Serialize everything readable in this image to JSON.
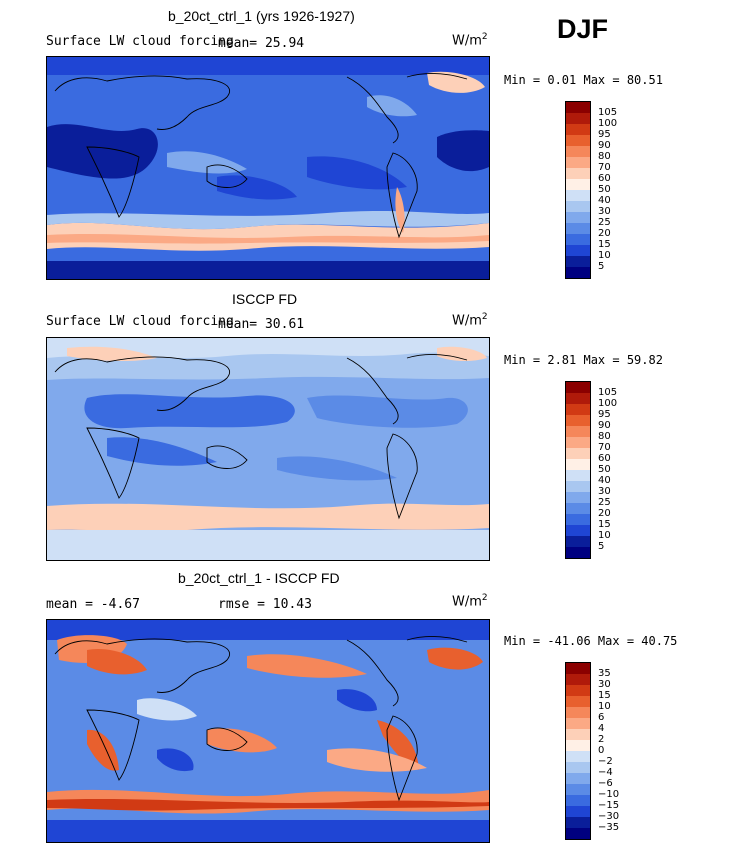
{
  "season": "DJF",
  "panels": [
    {
      "title": "b_20ct_ctrl_1 (yrs 1926-1927)",
      "field": "Surface LW cloud forcing",
      "stats": "mean=   25.94",
      "units": "W/m",
      "units_exp": "2",
      "minmax": "Min =    0.01  Max =   80.51",
      "levels": [
        "105",
        "100",
        "95",
        "90",
        "80",
        "70",
        "60",
        "50",
        "40",
        "30",
        "25",
        "20",
        "15",
        "10",
        "5"
      ],
      "colors": [
        "#8b0000",
        "#b01a0a",
        "#d13a14",
        "#e8602e",
        "#f5875a",
        "#fba985",
        "#fdd0b8",
        "#fff0e6",
        "#cfe0f6",
        "#a9c7f0",
        "#80a9ec",
        "#5b8be6",
        "#3a6be0",
        "#1f45d4",
        "#0a1e9a",
        "#000080"
      ]
    },
    {
      "title": "ISCCP FD",
      "field": "Surface LW cloud forcing",
      "stats": "mean=   30.61",
      "units": "W/m",
      "units_exp": "2",
      "minmax": "Min =    2.81  Max =   59.82",
      "levels": [
        "105",
        "100",
        "95",
        "90",
        "80",
        "70",
        "60",
        "50",
        "40",
        "30",
        "25",
        "20",
        "15",
        "10",
        "5"
      ],
      "colors": [
        "#8b0000",
        "#b01a0a",
        "#d13a14",
        "#e8602e",
        "#f5875a",
        "#fba985",
        "#fdd0b8",
        "#fff0e6",
        "#cfe0f6",
        "#a9c7f0",
        "#80a9ec",
        "#5b8be6",
        "#3a6be0",
        "#1f45d4",
        "#0a1e9a",
        "#000080"
      ]
    },
    {
      "title": "b_20ct_ctrl_1 - ISCCP FD",
      "stats_left": "mean =   -4.67",
      "stats_right": "rmse =   10.43",
      "units": "W/m",
      "units_exp": "2",
      "minmax": "Min = -41.06  Max =   40.75",
      "levels": [
        "35",
        "30",
        "15",
        "10",
        "6",
        "4",
        "2",
        "0",
        "−2",
        "−4",
        "−6",
        "−10",
        "−15",
        "−30",
        "−35"
      ],
      "colors": [
        "#8b0000",
        "#b01a0a",
        "#d13a14",
        "#e8602e",
        "#f5875a",
        "#fba985",
        "#fdd0b8",
        "#fff0e6",
        "#cfe0f6",
        "#a9c7f0",
        "#80a9ec",
        "#5b8be6",
        "#3a6be0",
        "#1f45d4",
        "#0a1e9a",
        "#000080"
      ]
    }
  ]
}
